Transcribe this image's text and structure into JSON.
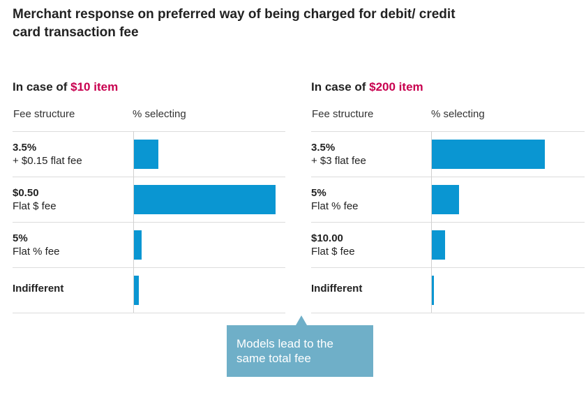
{
  "title": "Merchant response on preferred way of being charged for debit/ credit card transaction fee",
  "colors": {
    "bar": "#0a96d2",
    "accent": "#c8004f",
    "callout": "#6fafc8"
  },
  "callout": {
    "text": "Models lead to the same total fee"
  },
  "chart_data": [
    {
      "type": "bar",
      "orientation": "horizontal",
      "title_prefix": "In case of ",
      "title_highlight": "$10 item",
      "category_header": "Fee structure",
      "value_header": "% selecting",
      "categories": [
        {
          "main": "3.5%",
          "sub": "+ $0.15 flat fee"
        },
        {
          "main": "$0.50",
          "sub": "Flat $ fee"
        },
        {
          "main": "5%",
          "sub": "Flat % fee"
        },
        {
          "main": "Indifferent",
          "sub": ""
        }
      ],
      "values": [
        9,
        51,
        3,
        2
      ],
      "xlim": [
        0,
        52
      ],
      "grid": false
    },
    {
      "type": "bar",
      "orientation": "horizontal",
      "title_prefix": "In case of ",
      "title_highlight": "$200 item",
      "category_header": "Fee structure",
      "value_header": "% selecting",
      "categories": [
        {
          "main": "3.5%",
          "sub": "+ $3 flat fee"
        },
        {
          "main": "5%",
          "sub": "Flat % fee"
        },
        {
          "main": "$10.00",
          "sub": "Flat $ fee"
        },
        {
          "main": "Indifferent",
          "sub": ""
        }
      ],
      "values": [
        49,
        12,
        6,
        1
      ],
      "xlim": [
        0,
        57
      ],
      "grid": false
    }
  ]
}
